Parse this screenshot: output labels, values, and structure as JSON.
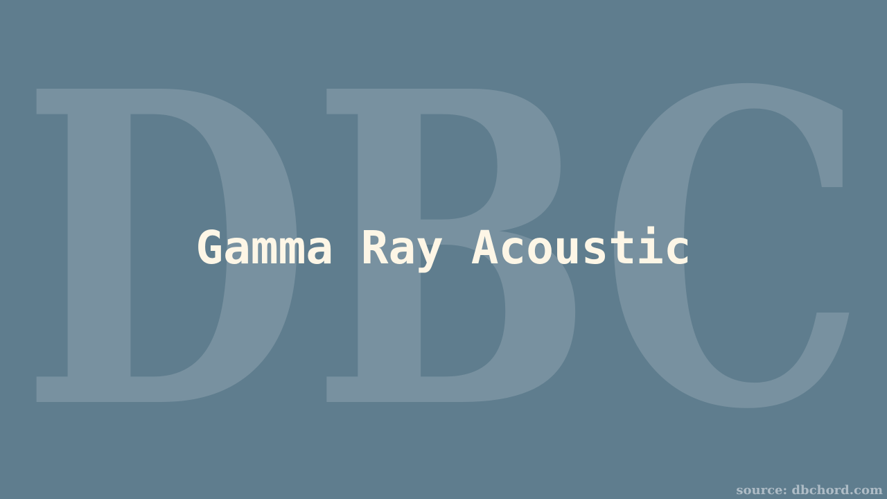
{
  "watermark": {
    "text": "DBC"
  },
  "title": "Gamma Ray Acoustic",
  "source": "source: dbchord.com",
  "colors": {
    "background": "#5f7d8e",
    "title": "#fdf6e6",
    "source": "#aebcc6"
  }
}
